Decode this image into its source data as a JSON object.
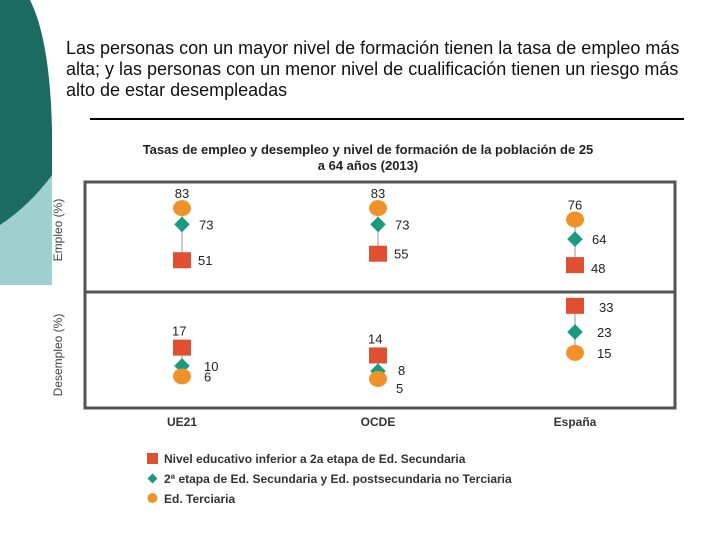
{
  "headline": "Las personas con un mayor nivel de formación tienen la tasa de empleo más alta; y las personas con un menor nivel de cualificación tienen un riesgo más alto de estar desempleadas",
  "chart_data": {
    "type": "scatter",
    "title_line1": "Tasas de empleo y desempleo y nivel de formación de la población de 25",
    "title_line2": "a 64 años  (2013)",
    "panels": [
      {
        "name": "Empleo",
        "ylabel": "Empleo (%)"
      },
      {
        "name": "Desempleo",
        "ylabel": "Desempleo (%)"
      }
    ],
    "categories": [
      "UE21",
      "OCDE",
      "España"
    ],
    "series": [
      {
        "name": "Nivel educativo inferior a 2a etapa de Ed. Secundaria",
        "marker": "square",
        "color": "#e04f30",
        "empleo": [
          51,
          55,
          48
        ],
        "desempleo": [
          17,
          14,
          33
        ]
      },
      {
        "name": "2ª etapa de Ed. Secundaria y Ed. postsecundaria no Terciaria",
        "marker": "diamond",
        "color": "#1a9a7f",
        "empleo": [
          73,
          73,
          64
        ],
        "desempleo": [
          10,
          8,
          23
        ]
      },
      {
        "name": "Ed. Terciaria",
        "marker": "circle",
        "color": "#f0912a",
        "empleo": [
          83,
          83,
          76
        ],
        "desempleo": [
          6,
          5,
          15
        ]
      }
    ],
    "colors": {
      "frame": "#555555",
      "guide": "#b8b8b8",
      "teal_dark": "#1c6b63",
      "teal_light": "#9fcfcf"
    }
  }
}
